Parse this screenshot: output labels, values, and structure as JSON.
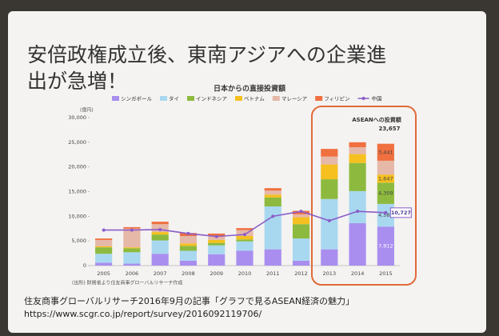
{
  "slide_title": [
    "安倍政権成立後、東南アジアへの企業進",
    "出が急増！"
  ],
  "chart_data": {
    "type": "bar",
    "stacked": true,
    "title": "日本からの直接投資額",
    "y_unit": "(億円)",
    "categories": [
      "2005",
      "2006",
      "2007",
      "2008",
      "2009",
      "2010",
      "2011",
      "2012",
      "2013",
      "2014",
      "2015"
    ],
    "ylim": [
      0,
      30000
    ],
    "yticks": [
      0,
      {
        "value": 5000,
        "label": "5,000"
      },
      {
        "value": 10000,
        "label": "10,000"
      },
      {
        "value": 15000,
        "label": "15,000"
      },
      {
        "value": 20000,
        "label": "20,000"
      },
      {
        "value": 25000,
        "label": "25,000"
      },
      {
        "value": 30000,
        "label": "30,000"
      }
    ],
    "grid": false,
    "series": [
      {
        "name": "シンガポール",
        "color": "#a98ef0",
        "values": [
          600,
          400,
          2400,
          1000,
          2300,
          3000,
          3300,
          1000,
          3300,
          8600,
          7912
        ],
        "value_labels": [
          null,
          null,
          null,
          null,
          null,
          null,
          null,
          null,
          null,
          null,
          "7,912"
        ]
      },
      {
        "name": "タイ",
        "color": "#a8d8f0",
        "values": [
          1800,
          2300,
          2700,
          2000,
          1800,
          1900,
          8700,
          4500,
          10200,
          6500,
          4589
        ],
        "value_labels": [
          null,
          null,
          null,
          null,
          null,
          null,
          null,
          null,
          null,
          null,
          "4,589"
        ]
      },
      {
        "name": "インドネシア",
        "color": "#8dba3e",
        "values": [
          1300,
          800,
          1200,
          1000,
          500,
          400,
          1800,
          2900,
          4000,
          5700,
          4309
        ],
        "value_labels": [
          null,
          null,
          null,
          null,
          null,
          null,
          null,
          null,
          null,
          null,
          "4,309"
        ]
      },
      {
        "name": "ベトナム",
        "color": "#f5c020",
        "values": [
          200,
          200,
          500,
          500,
          600,
          700,
          600,
          1400,
          3000,
          1800,
          1647
        ],
        "value_labels": [
          null,
          null,
          null,
          null,
          null,
          null,
          null,
          null,
          null,
          null,
          "1,647"
        ]
      },
      {
        "name": "マレーシア",
        "color": "#e6b8a8",
        "values": [
          1300,
          3800,
          1600,
          1500,
          800,
          1200,
          800,
          600,
          1600,
          1400,
          2800
        ]
      },
      {
        "name": "フィリピン",
        "color": "#f07040",
        "values": [
          300,
          300,
          500,
          600,
          500,
          400,
          500,
          700,
          1557,
          1000,
          3441
        ],
        "value_labels": [
          null,
          null,
          null,
          null,
          null,
          null,
          null,
          null,
          null,
          null,
          "3,441"
        ]
      },
      {
        "name": "中国",
        "color": "#8a5cc8",
        "type": "line",
        "values": [
          7200,
          7200,
          7300,
          6500,
          5900,
          6300,
          10000,
          11000,
          9100,
          11000,
          10727
        ],
        "value_labels": [
          null,
          null,
          null,
          null,
          null,
          null,
          null,
          null,
          null,
          null,
          "10,727"
        ]
      }
    ],
    "annotations": [
      {
        "text": "ASEANへの投資額"
      },
      {
        "text": "23,657"
      }
    ],
    "source": "(出所) 財務省より住友商事グローバルリサーチ作成"
  },
  "footer": [
    "住友商事グローバルリサーチ2016年9月の記事「グラフで見るASEAN経済の魅力」",
    "https://www.scgr.co.jp/report/survey/2016092119706/"
  ]
}
